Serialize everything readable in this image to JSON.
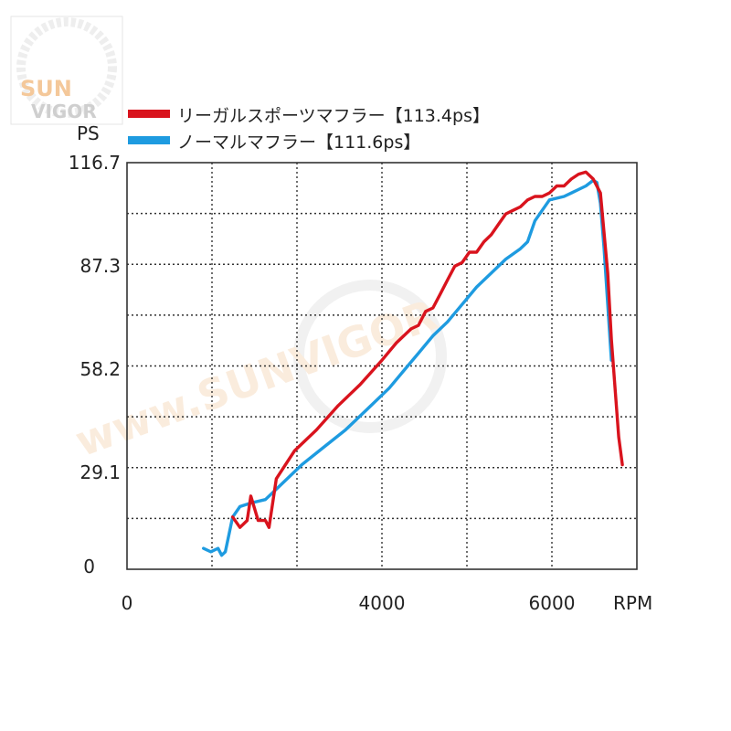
{
  "brand": {
    "logo_line1": "SUN",
    "logo_line2": "VIGOR",
    "watermark": "www.SUNVIGOR"
  },
  "chart_data": {
    "type": "line",
    "title": "",
    "ylabel": "PS",
    "xlabel": "RPM",
    "xlim": [
      0,
      7000
    ],
    "ylim": [
      0,
      116.7
    ],
    "y_ticks": [
      "116.7",
      "87.3",
      "58.2",
      "29.1",
      "0"
    ],
    "x_ticks": [
      "0",
      "4000",
      "6000"
    ],
    "grid": true,
    "legend_position": "top-left",
    "series": [
      {
        "name": "リーガルスポーツマフラー【113.4ps】",
        "color": "#d9131d",
        "x": [
          1450,
          1550,
          1650,
          1700,
          1800,
          1900,
          1950,
          2050,
          2300,
          2600,
          2900,
          3200,
          3500,
          3700,
          3900,
          4000,
          4100,
          4200,
          4300,
          4400,
          4500,
          4600,
          4700,
          4800,
          4900,
          5000,
          5100,
          5200,
          5300,
          5400,
          5500,
          5600,
          5700,
          5800,
          5900,
          6000,
          6100,
          6200,
          6300,
          6400,
          6500,
          6600,
          6650,
          6700,
          6750,
          6800
        ],
        "y": [
          15,
          12,
          14,
          21,
          14,
          14,
          12,
          26,
          34,
          40,
          47,
          53,
          60,
          65,
          69,
          70,
          74,
          75,
          79,
          83,
          87,
          88,
          91,
          91,
          94,
          96,
          99,
          102,
          103,
          104,
          106,
          107,
          107,
          108,
          110,
          110,
          112,
          113.4,
          114,
          112,
          108,
          85,
          66,
          52,
          38,
          30
        ]
      },
      {
        "name": "ノーマルマフラー【111.6ps】",
        "color": "#1e9be0",
        "x": [
          1050,
          1150,
          1250,
          1300,
          1350,
          1450,
          1550,
          1700,
          1900,
          2100,
          2400,
          2700,
          3000,
          3300,
          3600,
          3800,
          4000,
          4200,
          4400,
          4600,
          4800,
          5000,
          5200,
          5400,
          5500,
          5600,
          5800,
          6000,
          6100,
          6200,
          6300,
          6400,
          6450,
          6500,
          6550,
          6600,
          6650
        ],
        "y": [
          6,
          5,
          6,
          4,
          5,
          15,
          18,
          19,
          20,
          24,
          30,
          35,
          40,
          46,
          52,
          57,
          62,
          67,
          71,
          76,
          81,
          85,
          89,
          92,
          94,
          100,
          106,
          107,
          108,
          109,
          110,
          111.6,
          111,
          105,
          92,
          76,
          60
        ]
      }
    ]
  }
}
